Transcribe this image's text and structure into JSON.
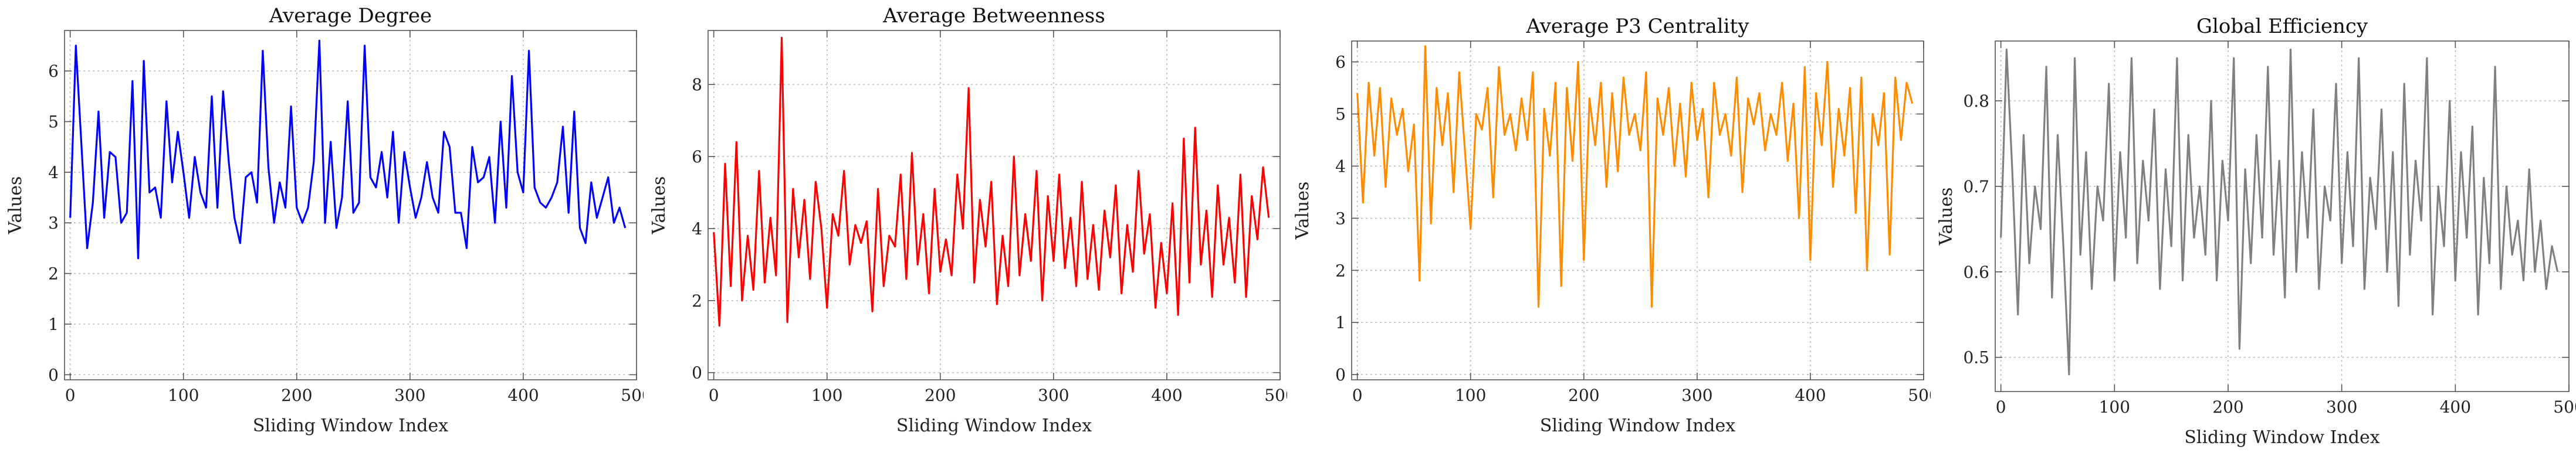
{
  "chart_data": [
    {
      "type": "line",
      "title": "Average Degree",
      "xlabel": "Sliding Window Index",
      "ylabel": "Values",
      "xlim": [
        -5,
        500
      ],
      "ylim": [
        -0.1,
        6.8
      ],
      "xticks": [
        0,
        100,
        200,
        300,
        400,
        500
      ],
      "yticks": [
        0,
        1,
        2,
        3,
        4,
        5,
        6
      ],
      "grid": true,
      "color": "#0000FF",
      "series": [
        {
          "name": "",
          "x_start": 0,
          "x_step": 5,
          "values": [
            3.1,
            6.5,
            4.5,
            2.5,
            3.4,
            5.2,
            3.1,
            4.4,
            4.3,
            3.0,
            3.2,
            5.8,
            2.3,
            6.2,
            3.6,
            3.7,
            3.1,
            5.4,
            3.8,
            4.8,
            4.0,
            3.1,
            4.3,
            3.6,
            3.3,
            5.5,
            3.3,
            5.6,
            4.2,
            3.1,
            2.6,
            3.9,
            4.0,
            3.4,
            6.4,
            4.1,
            3.0,
            3.8,
            3.3,
            5.3,
            3.3,
            3.0,
            3.3,
            4.2,
            6.6,
            3.0,
            4.6,
            2.9,
            3.5,
            5.4,
            3.2,
            3.4,
            6.5,
            3.9,
            3.7,
            4.4,
            3.5,
            4.8,
            3.0,
            4.4,
            3.7,
            3.1,
            3.5,
            4.2,
            3.5,
            3.2,
            4.8,
            4.5,
            3.2,
            3.2,
            2.5,
            4.5,
            3.8,
            3.9,
            4.3,
            3.0,
            5.0,
            3.3,
            5.9,
            4.0,
            3.6,
            6.4,
            3.7,
            3.4,
            3.3,
            3.5,
            3.8,
            4.9,
            3.2,
            5.2,
            2.9,
            2.6,
            3.8,
            3.1,
            3.5,
            3.9,
            3.0,
            3.3,
            2.9
          ]
        }
      ]
    },
    {
      "type": "line",
      "title": "Average Betweenness",
      "xlabel": "Sliding Window Index",
      "ylabel": "Values",
      "xlim": [
        -5,
        500
      ],
      "ylim": [
        -0.2,
        9.5
      ],
      "xticks": [
        0,
        100,
        200,
        300,
        400,
        500
      ],
      "yticks": [
        0,
        2,
        4,
        6,
        8
      ],
      "grid": true,
      "color": "#FF0000",
      "series": [
        {
          "name": "",
          "x_start": 0,
          "x_step": 5,
          "values": [
            3.9,
            1.3,
            5.8,
            2.4,
            6.4,
            2.0,
            3.8,
            2.3,
            5.6,
            2.5,
            4.3,
            2.7,
            9.3,
            1.4,
            5.1,
            3.2,
            4.8,
            2.6,
            5.3,
            4.0,
            1.8,
            4.4,
            3.8,
            5.6,
            3.0,
            4.1,
            3.6,
            4.2,
            1.7,
            5.1,
            2.4,
            3.8,
            3.5,
            5.5,
            2.6,
            6.1,
            3.0,
            4.4,
            2.2,
            5.1,
            2.8,
            3.7,
            2.7,
            5.5,
            4.0,
            7.9,
            2.5,
            4.8,
            3.5,
            5.3,
            1.9,
            3.8,
            2.4,
            6.0,
            2.7,
            4.4,
            3.1,
            5.6,
            2.0,
            4.9,
            3.1,
            5.5,
            2.9,
            4.3,
            2.4,
            5.3,
            2.6,
            4.1,
            2.3,
            4.5,
            3.2,
            5.2,
            2.2,
            4.1,
            2.8,
            5.6,
            3.3,
            4.4,
            1.8,
            3.6,
            2.2,
            4.7,
            1.6,
            6.5,
            2.5,
            6.8,
            3.0,
            4.5,
            2.1,
            5.2,
            3.0,
            4.3,
            2.5,
            5.5,
            2.1,
            4.9,
            3.7,
            5.7,
            4.3
          ]
        }
      ]
    },
    {
      "type": "line",
      "title": "Average P3 Centrality",
      "xlabel": "Sliding Window Index",
      "ylabel": "Values",
      "xlim": [
        -5,
        500
      ],
      "ylim": [
        -0.1,
        6.4
      ],
      "xticks": [
        0,
        100,
        200,
        300,
        400,
        500
      ],
      "yticks": [
        0,
        1,
        2,
        3,
        4,
        5,
        6
      ],
      "grid": true,
      "color": "#FF8C00",
      "series": [
        {
          "name": "",
          "x_start": 0,
          "x_step": 5,
          "values": [
            5.4,
            3.3,
            5.6,
            4.2,
            5.5,
            3.6,
            5.3,
            4.6,
            5.1,
            3.9,
            4.8,
            1.8,
            6.3,
            2.9,
            5.5,
            4.4,
            5.4,
            3.5,
            5.8,
            4.3,
            2.8,
            5.0,
            4.7,
            5.5,
            3.4,
            5.9,
            4.6,
            5.0,
            4.3,
            5.3,
            4.5,
            5.8,
            1.3,
            5.1,
            4.2,
            5.6,
            1.7,
            5.5,
            4.1,
            6.0,
            2.2,
            5.3,
            4.4,
            5.6,
            3.6,
            5.4,
            3.9,
            5.7,
            4.6,
            5.0,
            4.3,
            5.8,
            1.3,
            5.3,
            4.6,
            5.5,
            4.0,
            5.2,
            3.8,
            5.6,
            4.5,
            5.1,
            3.4,
            5.6,
            4.6,
            5.0,
            4.2,
            5.7,
            3.5,
            5.3,
            4.8,
            5.4,
            4.3,
            5.0,
            4.6,
            5.6,
            4.1,
            5.2,
            3.0,
            5.9,
            2.2,
            5.4,
            4.4,
            6.0,
            3.6,
            5.1,
            4.2,
            5.5,
            3.1,
            5.7,
            2.0,
            5.0,
            4.4,
            5.4,
            2.3,
            5.7,
            4.5,
            5.6,
            5.2
          ]
        }
      ]
    },
    {
      "type": "line",
      "title": "Global Efficiency",
      "xlabel": "Sliding Window Index",
      "ylabel": "Values",
      "xlim": [
        -5,
        500
      ],
      "ylim": [
        0.46,
        0.87
      ],
      "xticks": [
        0,
        100,
        200,
        300,
        400,
        500
      ],
      "yticks": [
        0.5,
        0.6,
        0.7,
        0.8
      ],
      "grid": true,
      "color": "#808080",
      "series": [
        {
          "name": "",
          "x_start": 0,
          "x_step": 5,
          "values": [
            0.64,
            0.86,
            0.72,
            0.55,
            0.76,
            0.61,
            0.7,
            0.65,
            0.84,
            0.57,
            0.76,
            0.63,
            0.48,
            0.85,
            0.62,
            0.74,
            0.58,
            0.7,
            0.66,
            0.82,
            0.59,
            0.74,
            0.64,
            0.85,
            0.61,
            0.73,
            0.66,
            0.79,
            0.58,
            0.72,
            0.63,
            0.85,
            0.59,
            0.76,
            0.64,
            0.7,
            0.62,
            0.8,
            0.59,
            0.73,
            0.66,
            0.85,
            0.51,
            0.72,
            0.61,
            0.76,
            0.64,
            0.84,
            0.62,
            0.73,
            0.57,
            0.86,
            0.6,
            0.74,
            0.64,
            0.79,
            0.58,
            0.7,
            0.66,
            0.82,
            0.61,
            0.74,
            0.63,
            0.85,
            0.58,
            0.71,
            0.65,
            0.79,
            0.6,
            0.74,
            0.56,
            0.82,
            0.62,
            0.73,
            0.66,
            0.85,
            0.55,
            0.7,
            0.63,
            0.8,
            0.59,
            0.74,
            0.64,
            0.77,
            0.55,
            0.71,
            0.61,
            0.84,
            0.58,
            0.7,
            0.62,
            0.66,
            0.59,
            0.72,
            0.6,
            0.66,
            0.58,
            0.63,
            0.6
          ]
        }
      ]
    }
  ]
}
